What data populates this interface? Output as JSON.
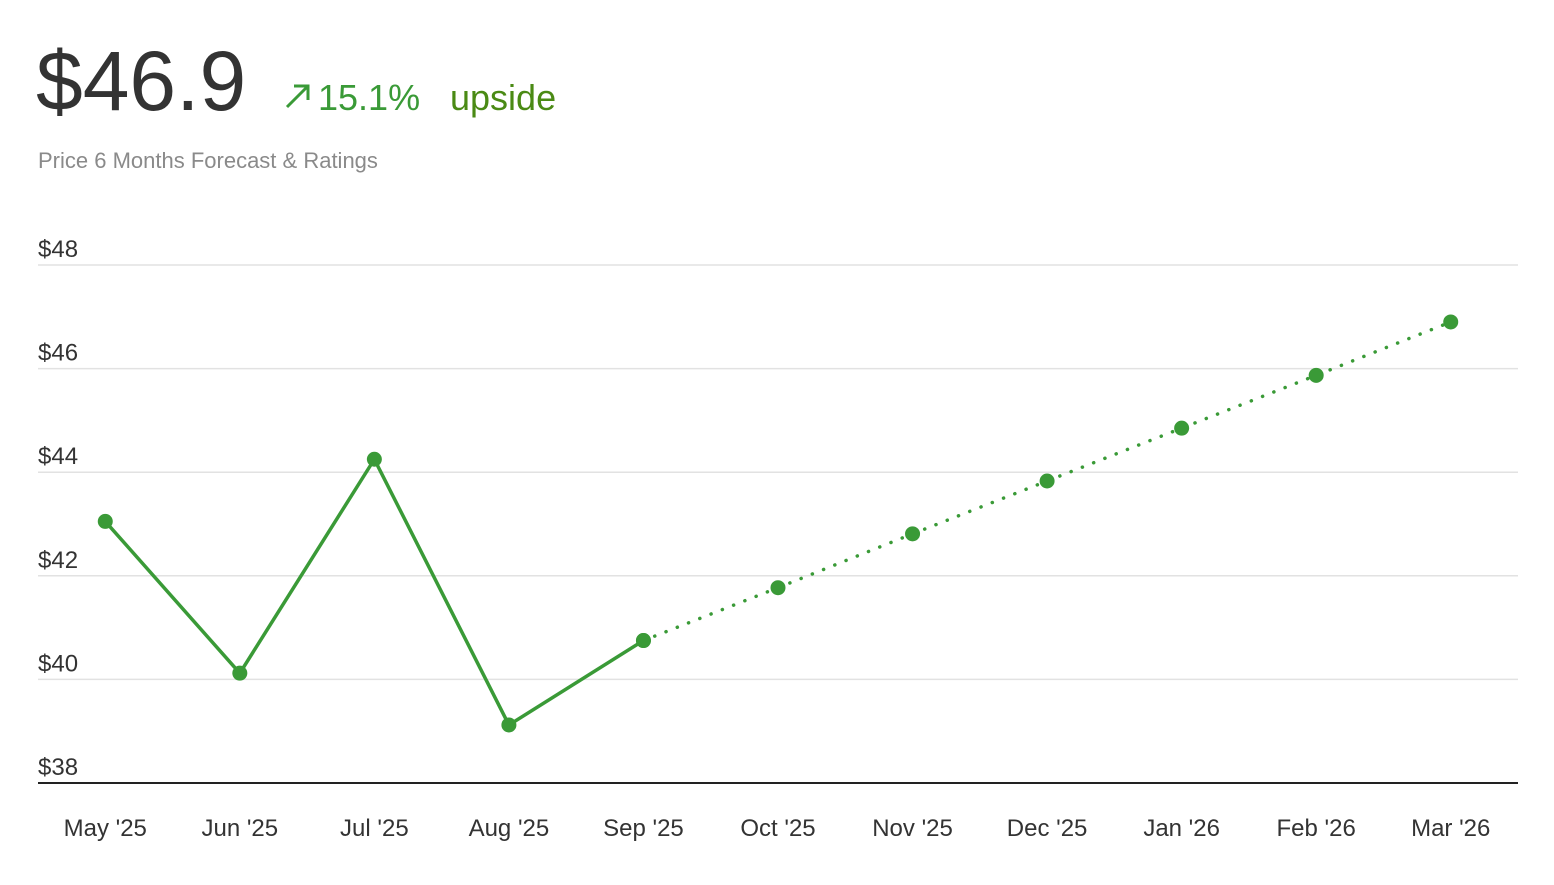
{
  "header": {
    "price": "$46.9",
    "change": "15.1%",
    "label": "upside",
    "subtitle": "Price 6 Months Forecast & Ratings"
  },
  "chart_data": {
    "type": "line",
    "categories": [
      "May '25",
      "Jun '25",
      "Jul '25",
      "Aug '25",
      "Sep '25",
      "Oct '25",
      "Nov '25",
      "Dec '25",
      "Jan '26",
      "Feb '26",
      "Mar '26"
    ],
    "series": [
      {
        "color": "#3a9a37",
        "line_style": "solid",
        "values": [
          43.05,
          40.12,
          44.25,
          39.12,
          40.75,
          null,
          null,
          null,
          null,
          null,
          null
        ]
      },
      {
        "color": "#3a9a37",
        "line_style": "dotted",
        "values": [
          null,
          null,
          null,
          null,
          40.75,
          41.77,
          42.81,
          43.83,
          44.85,
          45.87,
          46.9
        ]
      }
    ],
    "ylim": [
      38,
      48
    ],
    "yticks": [
      {
        "value": 38,
        "label": "$38"
      },
      {
        "value": 40,
        "label": "$40"
      },
      {
        "value": 42,
        "label": "$42"
      },
      {
        "value": 44,
        "label": "$44"
      },
      {
        "value": 46,
        "label": "$46"
      },
      {
        "value": 48,
        "label": "$48"
      }
    ],
    "grid": true
  }
}
